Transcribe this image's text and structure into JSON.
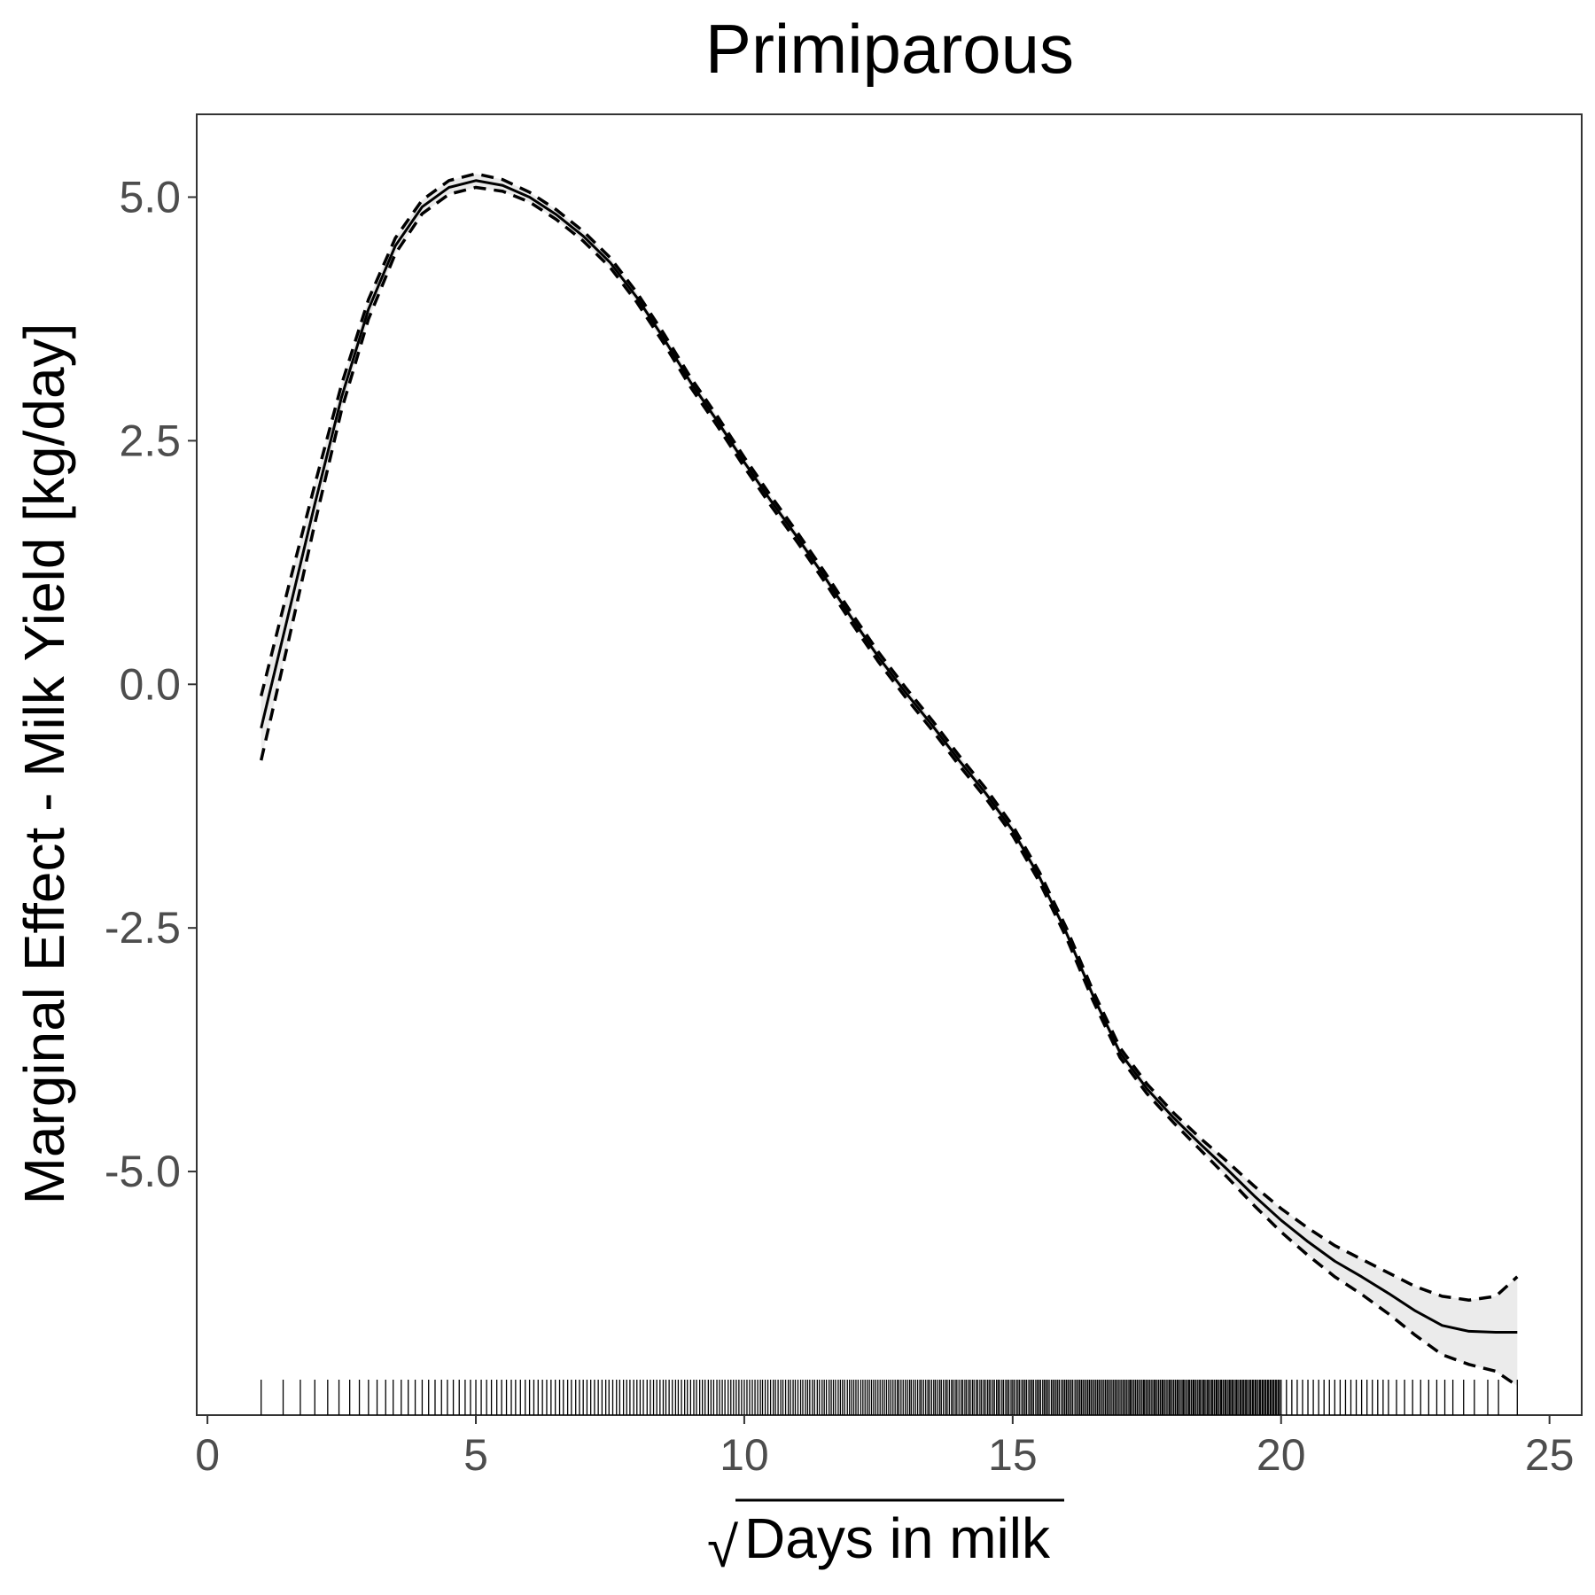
{
  "chart_data": {
    "type": "line",
    "title": "Primiparous",
    "xlabel_prefix": "√",
    "xlabel": "Days in milk",
    "ylabel": "Marginal Effect - Milk Yield [kg/day]",
    "xlim": [
      -0.2,
      25.6
    ],
    "ylim": [
      -7.5,
      5.85
    ],
    "x_ticks": [
      0,
      5,
      10,
      15,
      20,
      25
    ],
    "x_tick_labels": [
      "0",
      "5",
      "10",
      "15",
      "20",
      "25"
    ],
    "y_ticks": [
      5.0,
      2.5,
      0.0,
      -2.5,
      -5.0
    ],
    "y_tick_labels": [
      "5.0",
      "2.5",
      "0.0",
      "-2.5",
      "-5.0"
    ],
    "grid": false,
    "colors": {
      "line": "#000000",
      "band": "#ebebeb",
      "axis_text": "#4d4d4d"
    },
    "series": [
      {
        "role": "estimate",
        "style": "solid",
        "x": [
          1.0,
          1.5,
          2.0,
          2.5,
          3.0,
          3.5,
          4.0,
          4.5,
          5.0,
          5.5,
          6.0,
          6.5,
          7.0,
          7.5,
          8.0,
          8.5,
          9.0,
          9.5,
          10.0,
          10.5,
          11.0,
          11.5,
          12.0,
          12.5,
          13.0,
          13.5,
          14.0,
          14.5,
          15.0,
          15.5,
          16.0,
          16.5,
          17.0,
          17.5,
          18.0,
          18.5,
          19.0,
          19.5,
          20.0,
          20.5,
          21.0,
          21.5,
          22.0,
          22.5,
          23.0,
          23.5,
          24.0,
          24.4
        ],
        "values": [
          -0.45,
          0.7,
          1.85,
          2.95,
          3.85,
          4.5,
          4.9,
          5.1,
          5.17,
          5.12,
          5.0,
          4.82,
          4.6,
          4.33,
          3.97,
          3.55,
          3.1,
          2.7,
          2.28,
          1.88,
          1.5,
          1.1,
          0.68,
          0.28,
          -0.08,
          -0.42,
          -0.78,
          -1.12,
          -1.5,
          -1.98,
          -2.55,
          -3.2,
          -3.78,
          -4.15,
          -4.45,
          -4.72,
          -4.98,
          -5.25,
          -5.5,
          -5.72,
          -5.92,
          -6.08,
          -6.25,
          -6.43,
          -6.58,
          -6.64,
          -6.65,
          -6.65
        ]
      },
      {
        "role": "upper-bound",
        "style": "dashed",
        "x": [
          1.0,
          1.5,
          2.0,
          2.5,
          3.0,
          3.5,
          4.0,
          4.5,
          5.0,
          5.5,
          6.0,
          6.5,
          7.0,
          7.5,
          8.0,
          8.5,
          9.0,
          9.5,
          10.0,
          10.5,
          11.0,
          11.5,
          12.0,
          12.5,
          13.0,
          13.5,
          14.0,
          14.5,
          15.0,
          15.5,
          16.0,
          16.5,
          17.0,
          17.5,
          18.0,
          18.5,
          19.0,
          19.5,
          20.0,
          20.5,
          21.0,
          21.5,
          22.0,
          22.5,
          23.0,
          23.5,
          24.0,
          24.4
        ],
        "values": [
          -0.12,
          0.98,
          2.05,
          3.08,
          3.95,
          4.58,
          4.97,
          5.17,
          5.24,
          5.18,
          5.05,
          4.87,
          4.65,
          4.38,
          4.02,
          3.6,
          3.15,
          2.75,
          2.33,
          1.93,
          1.55,
          1.15,
          0.73,
          0.33,
          -0.03,
          -0.37,
          -0.73,
          -1.07,
          -1.45,
          -1.93,
          -2.5,
          -3.15,
          -3.73,
          -4.1,
          -4.4,
          -4.66,
          -4.9,
          -5.15,
          -5.38,
          -5.58,
          -5.76,
          -5.9,
          -6.04,
          -6.18,
          -6.28,
          -6.32,
          -6.28,
          -6.08
        ]
      },
      {
        "role": "lower-bound",
        "style": "dashed",
        "x": [
          1.0,
          1.5,
          2.0,
          2.5,
          3.0,
          3.5,
          4.0,
          4.5,
          5.0,
          5.5,
          6.0,
          6.5,
          7.0,
          7.5,
          8.0,
          8.5,
          9.0,
          9.5,
          10.0,
          10.5,
          11.0,
          11.5,
          12.0,
          12.5,
          13.0,
          13.5,
          14.0,
          14.5,
          15.0,
          15.5,
          16.0,
          16.5,
          17.0,
          17.5,
          18.0,
          18.5,
          19.0,
          19.5,
          20.0,
          20.5,
          21.0,
          21.5,
          22.0,
          22.5,
          23.0,
          23.5,
          24.0,
          24.4
        ],
        "values": [
          -0.78,
          0.42,
          1.65,
          2.82,
          3.75,
          4.42,
          4.83,
          5.03,
          5.1,
          5.06,
          4.95,
          4.77,
          4.55,
          4.28,
          3.92,
          3.5,
          3.05,
          2.65,
          2.23,
          1.83,
          1.45,
          1.05,
          0.63,
          0.23,
          -0.13,
          -0.47,
          -0.83,
          -1.17,
          -1.55,
          -2.03,
          -2.6,
          -3.25,
          -3.83,
          -4.2,
          -4.5,
          -4.78,
          -5.06,
          -5.35,
          -5.62,
          -5.86,
          -6.08,
          -6.26,
          -6.46,
          -6.68,
          -6.88,
          -6.98,
          -7.05,
          -7.2
        ]
      }
    ],
    "rug_x": [
      1.0,
      1.41,
      1.73,
      2.0,
      2.24,
      2.45,
      2.65,
      2.83,
      3.0,
      3.16,
      3.32,
      3.46,
      3.61,
      3.74,
      3.87,
      4.0,
      4.12,
      4.24,
      4.36,
      4.47,
      4.58,
      4.69,
      4.8,
      4.9,
      5.0,
      5.1,
      5.2,
      5.29,
      5.39,
      5.48,
      5.57,
      5.66,
      5.74,
      5.83,
      5.92,
      6.0,
      6.08,
      6.16,
      6.24,
      6.32,
      6.4,
      6.48,
      6.56,
      6.63,
      6.71,
      6.78,
      6.86,
      6.93,
      7.0,
      7.07,
      7.14,
      7.21,
      7.28,
      7.35,
      7.42,
      7.48,
      7.55,
      7.62,
      7.68,
      7.75,
      7.81,
      7.87,
      7.94,
      8.0,
      8.06,
      8.12,
      8.19,
      8.25,
      8.31,
      8.37,
      8.43,
      8.49,
      8.54,
      8.6,
      8.66,
      8.72,
      8.77,
      8.83,
      8.89,
      8.94,
      9.0,
      9.06,
      9.11,
      9.17,
      9.22,
      9.27,
      9.33,
      9.38,
      9.43,
      9.49,
      9.54,
      9.59,
      9.64,
      9.7,
      9.75,
      9.8,
      9.85,
      9.9,
      9.95,
      10.0,
      10.05,
      10.1,
      10.15,
      10.2,
      10.25,
      10.3,
      10.34,
      10.39,
      10.44,
      10.49,
      10.54,
      10.58,
      10.63,
      10.68,
      10.72,
      10.77,
      10.82,
      10.86,
      10.91,
      10.95,
      11.0,
      11.05,
      11.09,
      11.14,
      11.18,
      11.22,
      11.27,
      11.31,
      11.36,
      11.4,
      11.45,
      11.49,
      11.53,
      11.58,
      11.62,
      11.66,
      11.7,
      11.75,
      11.79,
      11.83,
      11.87,
      11.92,
      11.96,
      12.0,
      12.04,
      12.08,
      12.12,
      12.17,
      12.21,
      12.25,
      12.29,
      12.33,
      12.37,
      12.41,
      12.45,
      12.49,
      12.53,
      12.57,
      12.61,
      12.65,
      12.69,
      12.73,
      12.77,
      12.81,
      12.85,
      12.88,
      12.92,
      12.96,
      13.0,
      13.04,
      13.08,
      13.11,
      13.15,
      13.19,
      13.23,
      13.27,
      13.3,
      13.34,
      13.38,
      13.42,
      13.45,
      13.49,
      13.53,
      13.56,
      13.6,
      13.64,
      13.67,
      13.71,
      13.75,
      13.78,
      13.82,
      13.86,
      13.89,
      13.93,
      13.96,
      14.0,
      14.04,
      14.07,
      14.11,
      14.14,
      14.18,
      14.21,
      14.25,
      14.28,
      14.32,
      14.35,
      14.39,
      14.42,
      14.46,
      14.49,
      14.53,
      14.56,
      14.59,
      14.63,
      14.66,
      14.7,
      14.73,
      14.76,
      14.8,
      14.83,
      14.87,
      14.9,
      14.93,
      14.97,
      15.0,
      15.03,
      15.07,
      15.1,
      15.13,
      15.17,
      15.2,
      15.23,
      15.26,
      15.3,
      15.33,
      15.36,
      15.39,
      15.43,
      15.46,
      15.49,
      15.52,
      15.56,
      15.59,
      15.62,
      15.65,
      15.68,
      15.72,
      15.75,
      15.78,
      15.81,
      15.84,
      15.87,
      15.91,
      15.94,
      15.97,
      16.0,
      16.03,
      16.06,
      16.09,
      16.12,
      16.16,
      16.19,
      16.22,
      16.25,
      16.28,
      16.31,
      16.34,
      16.37,
      16.4,
      16.43,
      16.46,
      16.49,
      16.52,
      16.55,
      16.58,
      16.61,
      16.64,
      16.67,
      16.7,
      16.73,
      16.76,
      16.79,
      16.82,
      16.85,
      16.88,
      16.91,
      16.94,
      16.97,
      17.0,
      17.03,
      17.06,
      17.09,
      17.12,
      17.15,
      17.18,
      17.2,
      17.23,
      17.26,
      17.29,
      17.32,
      17.35,
      17.38,
      17.41,
      17.44,
      17.46,
      17.49,
      17.52,
      17.55,
      17.58,
      17.61,
      17.64,
      17.66,
      17.69,
      17.72,
      17.75,
      17.78,
      17.8,
      17.83,
      17.86,
      17.89,
      17.92,
      17.94,
      17.97,
      18.0,
      18.03,
      18.06,
      18.08,
      18.11,
      18.14,
      18.17,
      18.19,
      18.22,
      18.25,
      18.28,
      18.3,
      18.33,
      18.36,
      18.38,
      18.41,
      18.44,
      18.47,
      18.49,
      18.52,
      18.55,
      18.57,
      18.6,
      18.63,
      18.65,
      18.68,
      18.71,
      18.73,
      18.76,
      18.79,
      18.81,
      18.84,
      18.87,
      18.89,
      18.92,
      18.95,
      18.97,
      19.0,
      19.03,
      19.05,
      19.08,
      19.1,
      19.13,
      19.16,
      19.18,
      19.21,
      19.24,
      19.26,
      19.29,
      19.31,
      19.34,
      19.36,
      19.39,
      19.42,
      19.44,
      19.47,
      19.49,
      19.52,
      19.54,
      19.57,
      19.6,
      19.62,
      19.65,
      19.67,
      19.7,
      19.72,
      19.75,
      19.77,
      19.8,
      19.82,
      19.85,
      19.87,
      19.9,
      19.92,
      19.95,
      19.97,
      20.0,
      20.1,
      20.2,
      20.3,
      20.4,
      20.5,
      20.6,
      20.7,
      20.8,
      20.9,
      21.0,
      21.1,
      21.2,
      21.3,
      21.4,
      21.5,
      21.6,
      21.7,
      21.8,
      21.9,
      22.0,
      22.15,
      22.3,
      22.45,
      22.6,
      22.75,
      22.9,
      23.05,
      23.2,
      23.4,
      23.6,
      23.85,
      24.05,
      24.4
    ]
  }
}
